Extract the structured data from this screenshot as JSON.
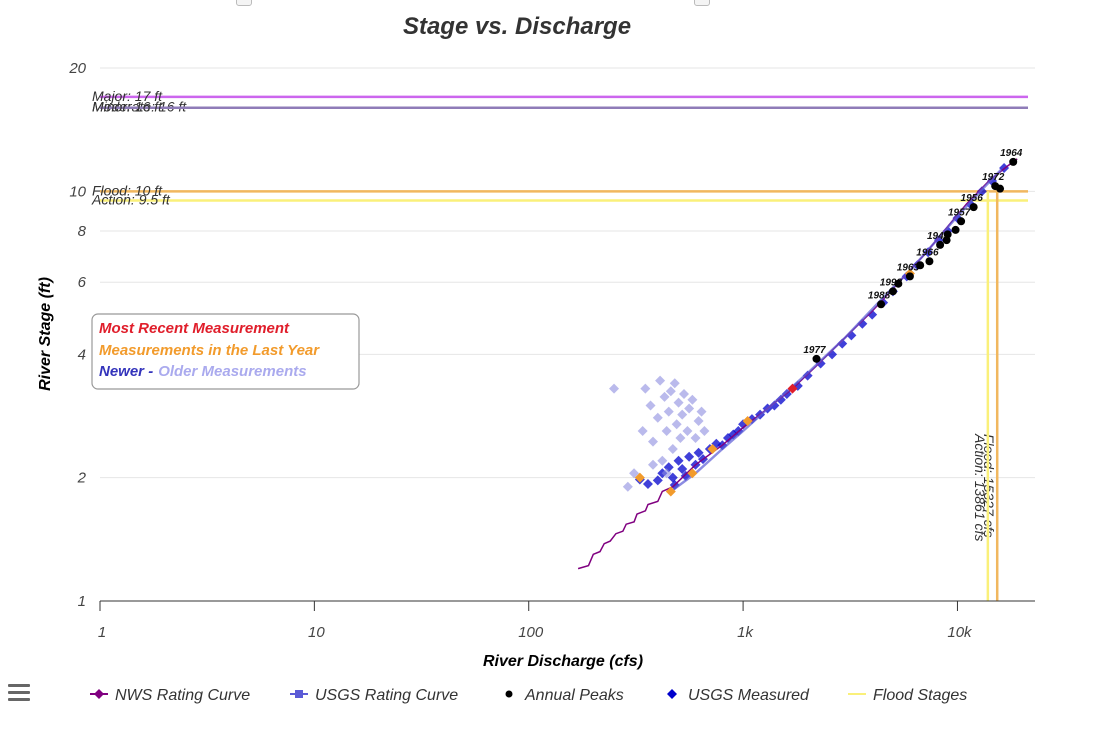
{
  "chart_data": {
    "type": "scatter",
    "title": "Stage vs. Discharge",
    "xlabel": "River Discharge (cfs)",
    "ylabel": "River Stage (ft)",
    "x_scale": "log",
    "y_scale": "log",
    "xlim": [
      1,
      23000
    ],
    "ylim": [
      1,
      20
    ],
    "x_ticks": [
      {
        "value": 1,
        "label": "1"
      },
      {
        "value": 10,
        "label": "10"
      },
      {
        "value": 100,
        "label": "100"
      },
      {
        "value": 1000,
        "label": "1k"
      },
      {
        "value": 10000,
        "label": "10k"
      }
    ],
    "y_ticks": [
      {
        "value": 1,
        "label": "1"
      },
      {
        "value": 2,
        "label": "2"
      },
      {
        "value": 4,
        "label": "4"
      },
      {
        "value": 6,
        "label": "6"
      },
      {
        "value": 8,
        "label": "8"
      },
      {
        "value": 10,
        "label": "10"
      },
      {
        "value": 20,
        "label": "20"
      }
    ],
    "grid": true,
    "legend_position": "bottom",
    "flood_stages": [
      {
        "label": "Major: 17 ft",
        "value": 17,
        "color": "#cc66ee"
      },
      {
        "label": "Moderate: 16 ft",
        "value": 16,
        "color": "#9e86c8"
      },
      {
        "label": "Minor: 16 ft",
        "value": 16,
        "color": "#8f7cb8"
      },
      {
        "label": "Flood: 10 ft",
        "value": 10,
        "color": "#f1b75f"
      },
      {
        "label": "Action: 9.5 ft",
        "value": 9.5,
        "color": "#faf07a"
      }
    ],
    "flood_flows": [
      {
        "label": "Flood: 15327 cfs",
        "value": 15327,
        "color": "#f1b75f"
      },
      {
        "label": "Action: 13861 cfs",
        "value": 13861,
        "color": "#faf07a"
      }
    ],
    "series": [
      {
        "name": "NWS Rating Curve",
        "color": "#800080",
        "points": [
          [
            170,
            1.2
          ],
          [
            190,
            1.22
          ],
          [
            200,
            1.3
          ],
          [
            215,
            1.32
          ],
          [
            225,
            1.38
          ],
          [
            240,
            1.4
          ],
          [
            255,
            1.46
          ],
          [
            275,
            1.48
          ],
          [
            285,
            1.54
          ],
          [
            310,
            1.56
          ],
          [
            320,
            1.63
          ],
          [
            350,
            1.66
          ],
          [
            360,
            1.72
          ],
          [
            400,
            1.75
          ],
          [
            420,
            1.85
          ],
          [
            470,
            1.9
          ],
          [
            520,
            2.0
          ],
          [
            600,
            2.15
          ],
          [
            800,
            2.4
          ],
          [
            1000,
            2.65
          ],
          [
            1300,
            2.95
          ],
          [
            1700,
            3.3
          ],
          [
            2200,
            3.75
          ],
          [
            3000,
            4.4
          ],
          [
            4000,
            5.1
          ],
          [
            5500,
            6.1
          ],
          [
            7000,
            7.0
          ],
          [
            9000,
            8.2
          ],
          [
            11000,
            9.3
          ],
          [
            14000,
            10.6
          ],
          [
            17000,
            11.5
          ],
          [
            19000,
            12.0
          ]
        ]
      },
      {
        "name": "USGS Rating Curve",
        "color": "#5b5bd6",
        "points": [
          [
            460,
            1.85
          ],
          [
            600,
            2.05
          ],
          [
            800,
            2.35
          ],
          [
            1000,
            2.6
          ],
          [
            1400,
            3.05
          ],
          [
            2000,
            3.6
          ],
          [
            3000,
            4.4
          ],
          [
            4500,
            5.5
          ],
          [
            6000,
            6.4
          ],
          [
            8000,
            7.6
          ],
          [
            10000,
            8.7
          ],
          [
            13000,
            10.1
          ],
          [
            16000,
            11.3
          ]
        ]
      },
      {
        "name": "Annual Peaks",
        "color": "#000000",
        "points": [
          {
            "year": "1964",
            "x": 18200,
            "y": 11.8
          },
          {
            "year": "1972",
            "x": 15000,
            "y": 10.3
          },
          {
            "year": "1956",
            "x": 11900,
            "y": 9.15
          },
          {
            "year": "1957",
            "x": 10400,
            "y": 8.45
          },
          {
            "year": "1942",
            "x": 8300,
            "y": 7.4
          },
          {
            "year": "1966",
            "x": 7400,
            "y": 6.75
          },
          {
            "year": "1963",
            "x": 6000,
            "y": 6.2
          },
          {
            "year": "1992",
            "x": 5000,
            "y": 5.7
          },
          {
            "year": "1988",
            "x": 4400,
            "y": 5.3
          },
          {
            "year": "1977",
            "x": 2200,
            "y": 3.9
          },
          {
            "year": "",
            "x": 9000,
            "y": 7.85
          },
          {
            "year": "",
            "x": 9800,
            "y": 8.05
          },
          {
            "year": "",
            "x": 8900,
            "y": 7.6
          },
          {
            "year": "",
            "x": 6700,
            "y": 6.6
          },
          {
            "year": "",
            "x": 15800,
            "y": 10.15
          },
          {
            "year": "",
            "x": 5300,
            "y": 5.95
          }
        ]
      },
      {
        "name": "USGS Measured",
        "color": "#0000cc",
        "points": [
          [
            330,
            1.98
          ],
          [
            360,
            1.93
          ],
          [
            400,
            1.97
          ],
          [
            420,
            2.05
          ],
          [
            450,
            2.12
          ],
          [
            470,
            2.0
          ],
          [
            480,
            1.92
          ],
          [
            500,
            2.2
          ],
          [
            520,
            2.1
          ],
          [
            540,
            2.02
          ],
          [
            560,
            2.25
          ],
          [
            600,
            2.15
          ],
          [
            620,
            2.3
          ],
          [
            650,
            2.22
          ],
          [
            700,
            2.35
          ],
          [
            750,
            2.42
          ],
          [
            800,
            2.4
          ],
          [
            850,
            2.5
          ],
          [
            900,
            2.55
          ],
          [
            950,
            2.6
          ],
          [
            1000,
            2.7
          ],
          [
            1100,
            2.78
          ],
          [
            1200,
            2.85
          ],
          [
            1300,
            2.95
          ],
          [
            1400,
            3.0
          ],
          [
            1500,
            3.1
          ],
          [
            1600,
            3.2
          ],
          [
            1800,
            3.35
          ],
          [
            2000,
            3.55
          ],
          [
            2300,
            3.8
          ],
          [
            2600,
            4.0
          ],
          [
            2900,
            4.25
          ],
          [
            3200,
            4.45
          ],
          [
            3600,
            4.75
          ],
          [
            4000,
            5.0
          ],
          [
            4500,
            5.35
          ],
          [
            5000,
            5.7
          ],
          [
            5800,
            6.2
          ],
          [
            6500,
            6.6
          ],
          [
            7300,
            7.1
          ],
          [
            8200,
            7.6
          ],
          [
            9000,
            8.0
          ],
          [
            10000,
            8.6
          ],
          [
            11500,
            9.3
          ],
          [
            13000,
            10.0
          ],
          [
            14500,
            10.6
          ],
          [
            16500,
            11.4
          ],
          [
            340,
            2.6
          ],
          [
            350,
            3.3
          ],
          [
            370,
            3.0
          ],
          [
            380,
            2.45
          ],
          [
            400,
            2.8
          ],
          [
            410,
            3.45
          ],
          [
            420,
            2.2
          ],
          [
            430,
            3.15
          ],
          [
            440,
            2.6
          ],
          [
            450,
            2.9
          ],
          [
            460,
            3.25
          ],
          [
            470,
            2.35
          ],
          [
            480,
            3.4
          ],
          [
            490,
            2.7
          ],
          [
            500,
            3.05
          ],
          [
            510,
            2.5
          ],
          [
            520,
            2.85
          ],
          [
            530,
            3.2
          ],
          [
            550,
            2.6
          ],
          [
            560,
            2.95
          ],
          [
            580,
            3.1
          ],
          [
            600,
            2.5
          ],
          [
            620,
            2.75
          ],
          [
            640,
            2.9
          ],
          [
            660,
            2.6
          ],
          [
            250,
            3.3
          ],
          [
            290,
            1.9
          ],
          [
            310,
            2.05
          ],
          [
            380,
            2.15
          ],
          [
            440,
            2.05
          ]
        ]
      },
      {
        "name": "Most Recent Measurement",
        "color": "#e01e2b",
        "points": [
          [
            1700,
            3.3
          ]
        ]
      },
      {
        "name": "Measurements in the Last Year",
        "color": "#f29b2c",
        "points": [
          [
            330,
            2.0
          ],
          [
            460,
            1.85
          ],
          [
            580,
            2.05
          ],
          [
            720,
            2.35
          ],
          [
            1050,
            2.75
          ],
          [
            6000,
            6.3
          ]
        ]
      }
    ]
  },
  "info_box": {
    "recent": "Most Recent Measurement",
    "last_year": "Measurements in the Last Year",
    "newer": "Newer -",
    "older": "Older Measurements"
  },
  "legend": {
    "items": [
      {
        "label": "NWS Rating Curve",
        "color": "#800080",
        "icon": "line-diamond"
      },
      {
        "label": "USGS Rating Curve",
        "color": "#5b5bd6",
        "icon": "line-square"
      },
      {
        "label": "Annual Peaks",
        "color": "#000000",
        "icon": "circle"
      },
      {
        "label": "USGS Measured",
        "color": "#0000cc",
        "icon": "diamond"
      },
      {
        "label": "Flood Stages",
        "color": "#faf07a",
        "icon": "line"
      }
    ]
  },
  "menu": {
    "icon": "hamburger-menu-icon"
  }
}
